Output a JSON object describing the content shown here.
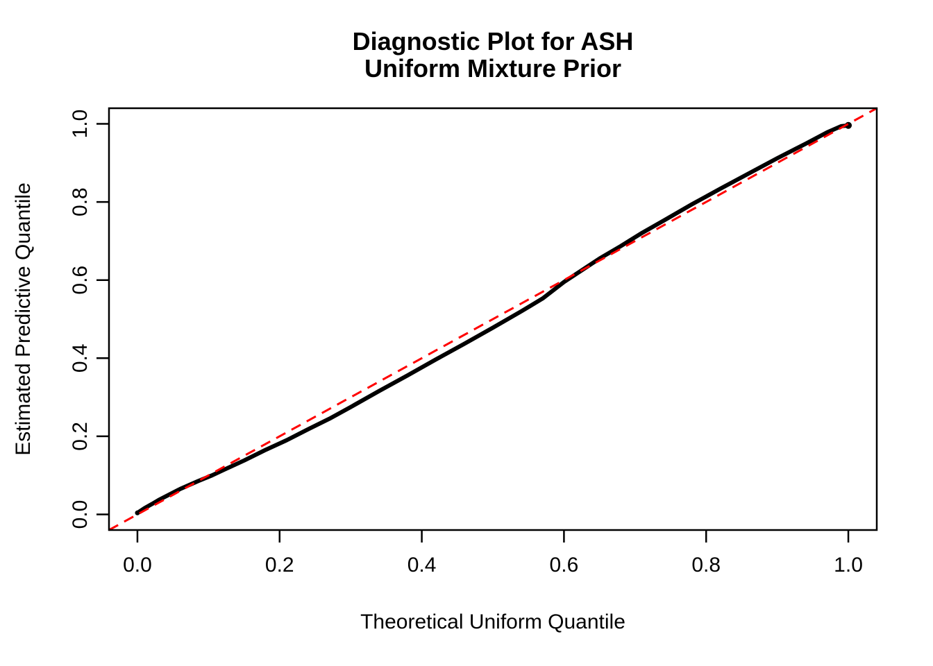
{
  "page": {
    "background": "#ffffff"
  },
  "chart_data": {
    "type": "line",
    "title_lines": [
      "Diagnostic Plot for ASH",
      "Uniform Mixture Prior"
    ],
    "xlabel": "Theoretical Uniform Quantile",
    "ylabel": "Estimated Predictive Quantile",
    "xlim": [
      -0.04,
      1.04
    ],
    "ylim": [
      -0.04,
      1.04
    ],
    "grid": false,
    "legend": "none",
    "frame_color": "#000000",
    "axis_ticks": {
      "x": {
        "values": [
          0.0,
          0.2,
          0.4,
          0.6,
          0.8,
          1.0
        ],
        "labels": [
          "0.0",
          "0.2",
          "0.4",
          "0.6",
          "0.8",
          "1.0"
        ]
      },
      "y": {
        "values": [
          0.0,
          0.2,
          0.4,
          0.6,
          0.8,
          1.0
        ],
        "labels": [
          "0.0",
          "0.2",
          "0.4",
          "0.6",
          "0.8",
          "1.0"
        ]
      }
    },
    "series": [
      {
        "name": "estimated-predictive-quantiles",
        "style": "thick-point-curve",
        "color": "#000000",
        "points": [
          [
            0.0,
            0.004
          ],
          [
            0.01,
            0.016
          ],
          [
            0.02,
            0.026
          ],
          [
            0.03,
            0.037
          ],
          [
            0.045,
            0.051
          ],
          [
            0.06,
            0.065
          ],
          [
            0.085,
            0.085
          ],
          [
            0.105,
            0.1
          ],
          [
            0.12,
            0.113
          ],
          [
            0.15,
            0.138
          ],
          [
            0.18,
            0.165
          ],
          [
            0.21,
            0.19
          ],
          [
            0.24,
            0.218
          ],
          [
            0.27,
            0.245
          ],
          [
            0.3,
            0.275
          ],
          [
            0.34,
            0.316
          ],
          [
            0.38,
            0.356
          ],
          [
            0.42,
            0.397
          ],
          [
            0.46,
            0.437
          ],
          [
            0.5,
            0.478
          ],
          [
            0.54,
            0.52
          ],
          [
            0.57,
            0.553
          ],
          [
            0.6,
            0.595
          ],
          [
            0.625,
            0.625
          ],
          [
            0.65,
            0.655
          ],
          [
            0.68,
            0.687
          ],
          [
            0.71,
            0.721
          ],
          [
            0.74,
            0.752
          ],
          [
            0.78,
            0.794
          ],
          [
            0.82,
            0.834
          ],
          [
            0.86,
            0.873
          ],
          [
            0.9,
            0.912
          ],
          [
            0.94,
            0.949
          ],
          [
            0.97,
            0.978
          ],
          [
            0.99,
            0.994
          ],
          [
            1.0,
            0.996
          ]
        ]
      },
      {
        "name": "reference-line-y-equals-x",
        "style": "dashed-line",
        "color": "#FF0000",
        "points": [
          [
            -0.04,
            -0.04
          ],
          [
            1.04,
            1.04
          ]
        ]
      }
    ]
  }
}
